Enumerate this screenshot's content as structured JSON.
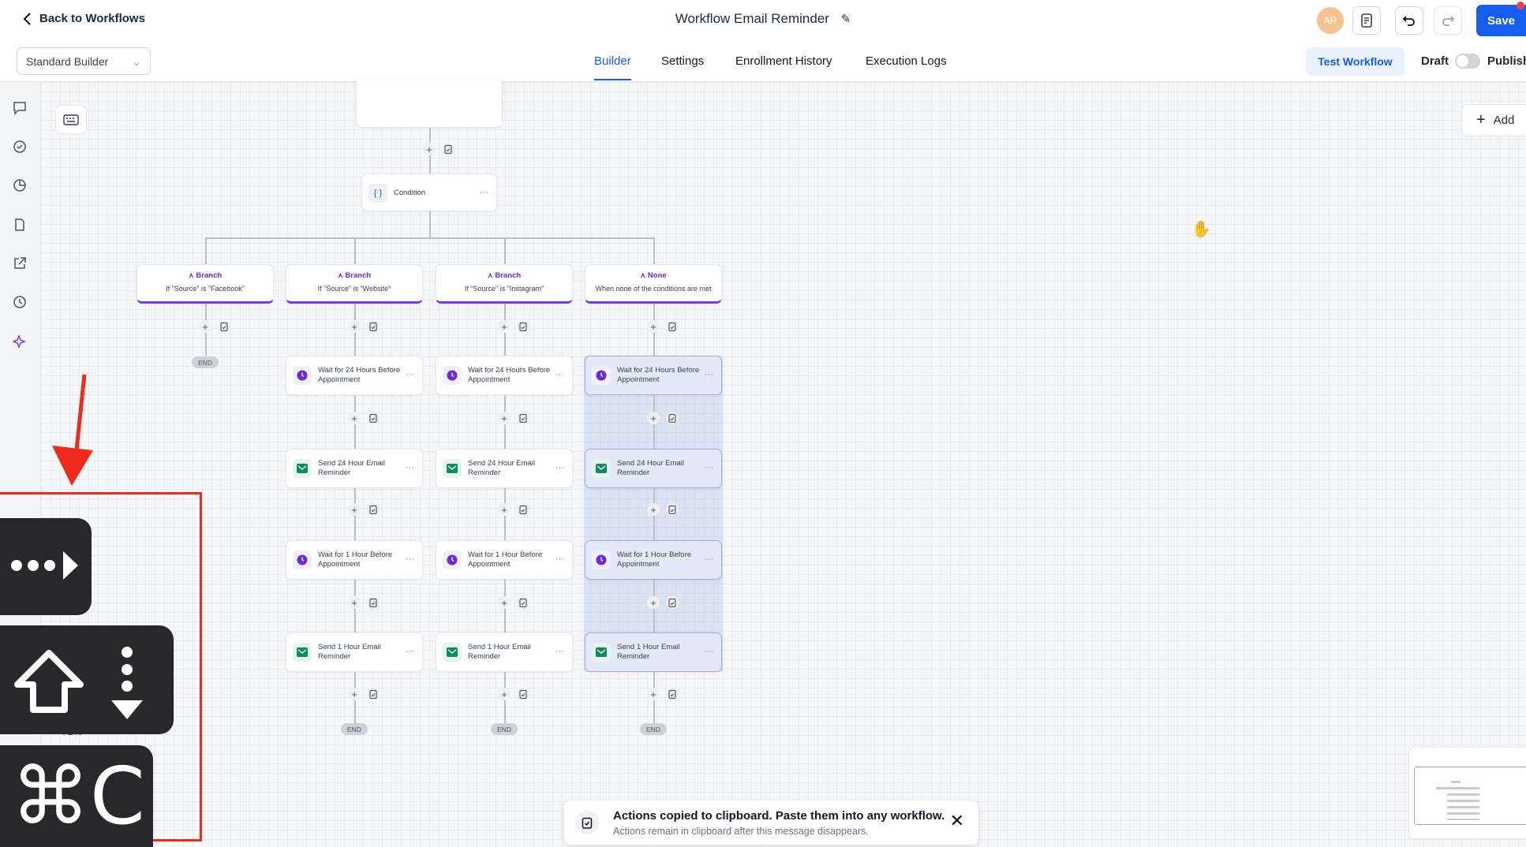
{
  "header": {
    "back_label": "Back to Workflows",
    "title": "Workflow Email Reminder",
    "avatar_initials": "AR",
    "save_label": "Save",
    "builder_select": "Standard Builder",
    "tabs": [
      {
        "label": "Builder",
        "active": true
      },
      {
        "label": "Settings",
        "active": false
      },
      {
        "label": "Enrollment History",
        "active": false
      },
      {
        "label": "Execution Logs",
        "active": false
      }
    ],
    "test_workflow_label": "Test Workflow",
    "draft_label": "Draft",
    "publish_label": "Publish",
    "publish_enabled": false
  },
  "canvas": {
    "add_label": "Add",
    "condition_label": "Condition",
    "zoom_level": "71%",
    "branches": [
      {
        "type": "Branch",
        "condition": "If \"Source\" is \"Facebook\"",
        "steps": [],
        "selected": false
      },
      {
        "type": "Branch",
        "condition": "If \"Source\" is \"Website\"",
        "selected": false,
        "steps": [
          {
            "kind": "wait",
            "label": "Wait for 24 Hours Before Appointment"
          },
          {
            "kind": "email",
            "label": "Send 24 Hour Email Reminder"
          },
          {
            "kind": "wait",
            "label": "Wait for 1 Hour Before Appointment"
          },
          {
            "kind": "email",
            "label": "Send 1 Hour Email Reminder"
          }
        ]
      },
      {
        "type": "Branch",
        "condition": "If \"Source\" is \"Instagram\"",
        "selected": false,
        "steps": [
          {
            "kind": "wait",
            "label": "Wait for 24 Hours Before Appointment"
          },
          {
            "kind": "email",
            "label": "Send 24 Hour Email Reminder"
          },
          {
            "kind": "wait",
            "label": "Wait for 1 Hour Before Appointment"
          },
          {
            "kind": "email",
            "label": "Send 1 Hour Email Reminder"
          }
        ]
      },
      {
        "type": "None",
        "condition": "When none of the conditions are met",
        "selected": true,
        "steps": [
          {
            "kind": "wait",
            "label": "Wait for 24 Hours Before Appointment"
          },
          {
            "kind": "email",
            "label": "Send 24 Hour Email Reminder"
          },
          {
            "kind": "wait",
            "label": "Wait for 1 Hour Before Appointment"
          },
          {
            "kind": "email",
            "label": "Send 1 Hour Email Reminder"
          }
        ]
      }
    ],
    "end_label": "END"
  },
  "toast": {
    "title": "Actions copied to clipboard. Paste them into any workflow.",
    "subtitle": "Actions remain in clipboard after this message disappears."
  },
  "overlay": {
    "keys": [
      "ellipsis-arrow-icon",
      "shift-select-down-icon",
      "cmd-c-icon"
    ],
    "cmd_key": "⌘C",
    "accent": "#ef2b1c"
  },
  "colors": {
    "primary": "#155eef",
    "branch": "#7c3aed",
    "email": "#0f8a5f"
  }
}
